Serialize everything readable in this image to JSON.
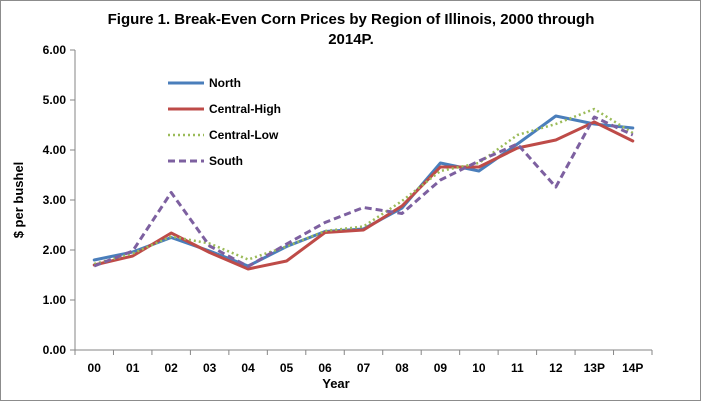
{
  "chart_data": {
    "type": "line",
    "title_line1": "Figure 1.  Break-Even Corn Prices by Region of Illinois, 2000 through",
    "title_line2": "2014P.",
    "xlabel": "Year",
    "ylabel": "$ per bushel",
    "ylim": [
      0,
      6
    ],
    "yticks": [
      "0.00",
      "1.00",
      "2.00",
      "3.00",
      "4.00",
      "5.00",
      "6.00"
    ],
    "categories": [
      "00",
      "01",
      "02",
      "03",
      "04",
      "05",
      "06",
      "07",
      "08",
      "09",
      "10",
      "11",
      "12",
      "13P",
      "14P"
    ],
    "grid": false,
    "legend_position": "upper-left",
    "series": [
      {
        "name": "North",
        "color": "#4a7ebb",
        "dash": "solid",
        "values": [
          1.8,
          1.96,
          2.25,
          1.98,
          1.68,
          2.07,
          2.37,
          2.42,
          2.84,
          3.74,
          3.58,
          4.12,
          4.68,
          4.52,
          4.44
        ]
      },
      {
        "name": "Central-High",
        "color": "#be4b48",
        "dash": "solid",
        "values": [
          1.7,
          1.88,
          2.34,
          1.95,
          1.62,
          1.78,
          2.35,
          2.4,
          2.88,
          3.66,
          3.66,
          4.04,
          4.2,
          4.56,
          4.18
        ]
      },
      {
        "name": "Central-Low",
        "color": "#9bbb59",
        "dash": "dotted",
        "values": [
          1.72,
          1.93,
          2.27,
          2.13,
          1.81,
          2.07,
          2.38,
          2.47,
          2.98,
          3.58,
          3.74,
          4.3,
          4.52,
          4.82,
          4.34
        ]
      },
      {
        "name": "South",
        "color": "#7d60a0",
        "dash": "dashed",
        "values": [
          1.68,
          1.98,
          3.15,
          2.08,
          1.67,
          2.12,
          2.55,
          2.85,
          2.73,
          3.4,
          3.78,
          4.12,
          3.26,
          4.66,
          4.3
        ]
      }
    ]
  }
}
